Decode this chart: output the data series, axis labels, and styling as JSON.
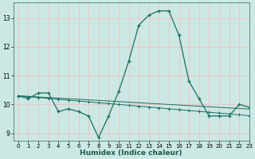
{
  "xlabel": "Humidex (Indice chaleur)",
  "background_color": "#cce8e4",
  "line_color": "#1a6e62",
  "grid_color": "#e8c8c8",
  "xlim": [
    -0.5,
    23
  ],
  "ylim": [
    8.75,
    13.55
  ],
  "yticks": [
    9,
    10,
    11,
    12,
    13
  ],
  "xticks": [
    0,
    1,
    2,
    3,
    4,
    5,
    6,
    7,
    8,
    9,
    10,
    11,
    12,
    13,
    14,
    15,
    16,
    17,
    18,
    19,
    20,
    21,
    22,
    23
  ],
  "line1_x": [
    0,
    1,
    2,
    3,
    4,
    5,
    6,
    7,
    8,
    9,
    10,
    11,
    12,
    13,
    14,
    15,
    16,
    17,
    18,
    19,
    20,
    21,
    22,
    23
  ],
  "line1_y": [
    10.3,
    10.2,
    10.4,
    10.4,
    9.75,
    9.85,
    9.75,
    9.6,
    8.85,
    9.6,
    10.45,
    11.5,
    12.75,
    13.1,
    13.25,
    13.25,
    12.4,
    10.8,
    10.2,
    9.6,
    9.6,
    9.6,
    10.0,
    9.9
  ],
  "line2_x": [
    0,
    1,
    2,
    3,
    4,
    5,
    6,
    7,
    8,
    9,
    10,
    11,
    12,
    13,
    14,
    15,
    16,
    17,
    18,
    19,
    20,
    21,
    22,
    23
  ],
  "line2_y": [
    10.3,
    10.27,
    10.24,
    10.21,
    10.18,
    10.15,
    10.12,
    10.09,
    10.06,
    10.03,
    10.0,
    9.97,
    9.94,
    9.91,
    9.88,
    9.85,
    9.82,
    9.79,
    9.76,
    9.73,
    9.7,
    9.67,
    9.64,
    9.61
  ],
  "line3_x": [
    0,
    1,
    2,
    3,
    4,
    5,
    6,
    7,
    8,
    9,
    10,
    11,
    12,
    13,
    14,
    15,
    16,
    17,
    18,
    19,
    20,
    21,
    22,
    23
  ],
  "line3_y": [
    10.3,
    10.28,
    10.26,
    10.24,
    10.22,
    10.2,
    10.18,
    10.16,
    10.14,
    10.12,
    10.1,
    10.08,
    10.06,
    10.04,
    10.02,
    10.0,
    9.98,
    9.96,
    9.94,
    9.92,
    9.9,
    9.88,
    9.86,
    9.84
  ]
}
